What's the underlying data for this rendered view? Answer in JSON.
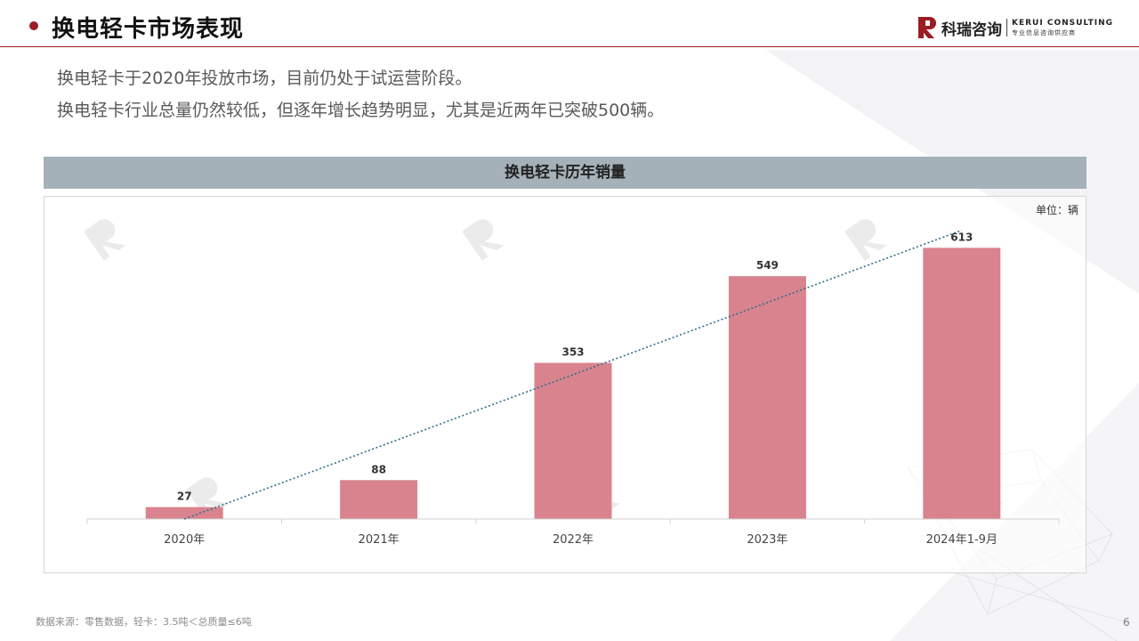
{
  "header": {
    "title": "换电轻卡市场表现",
    "logo_cn": "科瑞咨询",
    "logo_en": "KERUI CONSULTING",
    "logo_en_sub": "专业信息咨询供应商"
  },
  "bullets": [
    "换电轻卡于2020年投放市场，目前仍处于试运营阶段。",
    "换电轻卡行业总量仍然较低，但逐年增长趋势明显，尤其是近两年已突破500辆。"
  ],
  "footnote": "数据来源：零售数据，轻卡：3.5吨＜总质量≤6吨",
  "page_number": "6",
  "colors": {
    "accent": "#9b1c22",
    "bar": "#d9838f",
    "trendline": "#2e6f86",
    "banner": "#a5b1b8"
  },
  "chart_data": {
    "type": "bar",
    "title": "换电轻卡历年销量",
    "unit_label": "单位：辆",
    "categories": [
      "2020年",
      "2021年",
      "2022年",
      "2023年",
      "2024年1-9月"
    ],
    "values": [
      27,
      88,
      353,
      549,
      613
    ],
    "data_labels": [
      "27",
      "88",
      "353",
      "549",
      "613"
    ],
    "ylim": [
      0,
      650
    ],
    "trendline": "linear",
    "grid": false,
    "legend": "none"
  }
}
